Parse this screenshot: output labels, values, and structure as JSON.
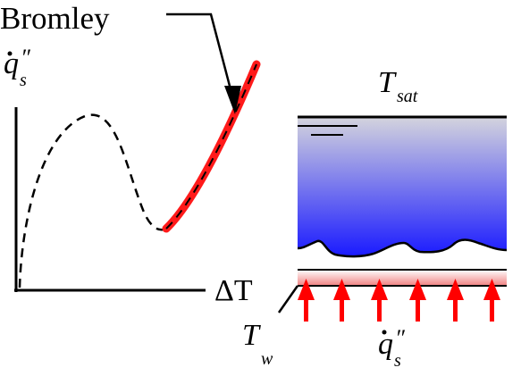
{
  "labels": {
    "correlation_name": "Bromley",
    "flux": "q",
    "flux_sub": "s",
    "flux_prime": "″",
    "delta_t": "ΔT",
    "t_sat": "T",
    "t_sat_sub": "sat",
    "t_wall": "T",
    "t_wall_sub": "w"
  },
  "colors": {
    "curve_highlight": "#ff1a1a",
    "liquid_top": "#d4d4dd",
    "liquid_bottom": "#1a1aff",
    "heater_pink": "#f08080",
    "arrow_red": "#ff0000"
  },
  "icons": {
    "heat_arrow": "up-arrow-icon"
  }
}
